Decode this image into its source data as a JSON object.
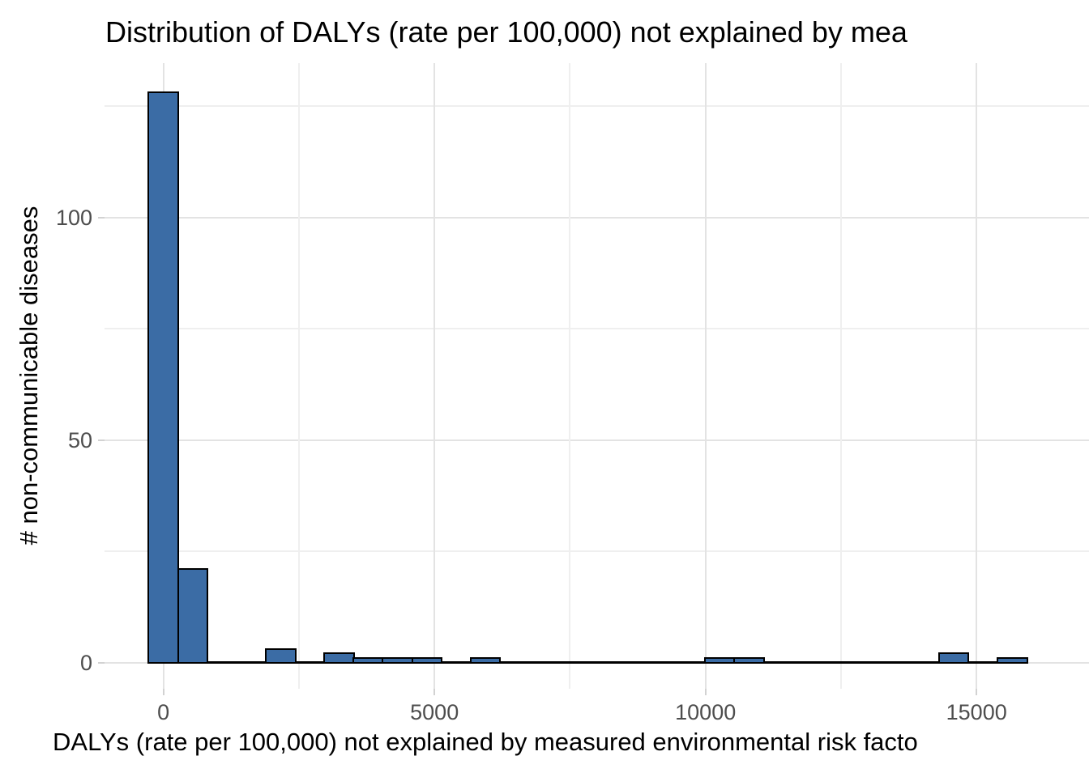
{
  "chart_data": {
    "type": "bar",
    "subtype": "histogram",
    "title": "Distribution of DALYs (rate per 100,000) not explained by mea",
    "xlabel": "DALYs (rate per 100,000) not explained by measured environmental risk facto",
    "ylabel": "# non-communicable diseases",
    "bin_width": 540,
    "bin_range": [
      -270,
      15930
    ],
    "bins": [
      {
        "center": 0,
        "count": 128
      },
      {
        "center": 540,
        "count": 21
      },
      {
        "center": 2160,
        "count": 3
      },
      {
        "center": 3240,
        "count": 2
      },
      {
        "center": 3780,
        "count": 1
      },
      {
        "center": 4320,
        "count": 1
      },
      {
        "center": 4860,
        "count": 1
      },
      {
        "center": 5940,
        "count": 1
      },
      {
        "center": 10260,
        "count": 1
      },
      {
        "center": 10800,
        "count": 1
      },
      {
        "center": 14580,
        "count": 2
      },
      {
        "center": 15660,
        "count": 1
      }
    ],
    "x_ticks": [
      {
        "value": 0,
        "label": "0"
      },
      {
        "value": 5000,
        "label": "5000"
      },
      {
        "value": 10000,
        "label": "10000"
      },
      {
        "value": 15000,
        "label": "15000"
      }
    ],
    "x_minor_gridlines": [
      2500,
      7500,
      12500
    ],
    "y_ticks": [
      {
        "value": 0,
        "label": "0"
      },
      {
        "value": 50,
        "label": "50"
      },
      {
        "value": 100,
        "label": "100"
      }
    ],
    "y_minor_gridlines": [
      25,
      75,
      125
    ],
    "ylim": [
      0,
      135
    ],
    "grid": true,
    "legend_position": "none",
    "colors": {
      "bar_fill": "#3b6ca5",
      "bar_stroke": "#000000",
      "grid_major": "#e3e3e3",
      "grid_minor": "#efefef",
      "tick_mark": "#d2d2d2",
      "tick_label_text": "#4d4d4d",
      "title_text": "#000000",
      "background": "#ffffff"
    }
  }
}
